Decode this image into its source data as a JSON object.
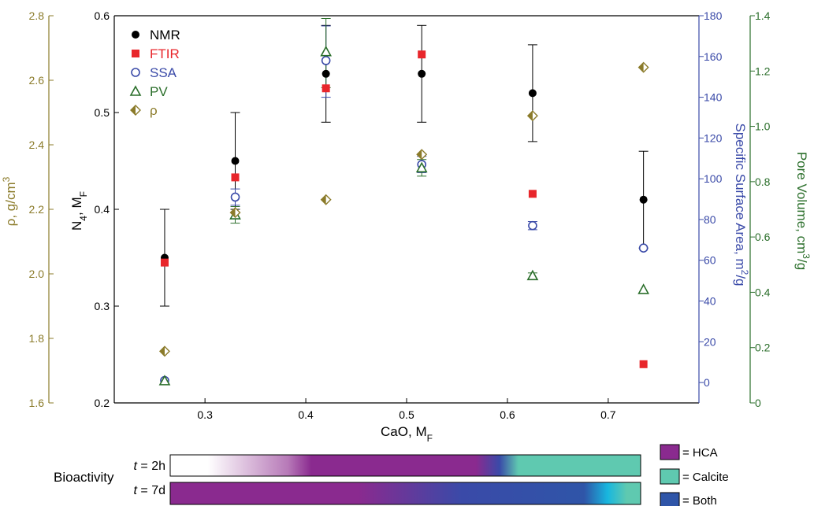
{
  "chart_data": {
    "type": "scatter",
    "x": [
      0.26,
      0.33,
      0.42,
      0.515,
      0.625,
      0.735
    ],
    "xlabel_main": "CaO",
    "xlabel_sub": "F",
    "xlabel_suffix": ", M",
    "xlim": [
      0.21,
      0.79
    ],
    "xticks": [
      "0.3",
      "0.4",
      "0.5",
      "0.6",
      "0.7"
    ],
    "axes": {
      "left_inner": {
        "label_main": "N",
        "label_sub": "4",
        "label_rest": ", M",
        "label_sub2": "F",
        "range": [
          0.2,
          0.6
        ],
        "ticks": [
          "0.2",
          "0.3",
          "0.4",
          "0.5",
          "0.6"
        ],
        "color": "#000000"
      },
      "left_outer": {
        "label": "ρ, g/cm",
        "label_sup": "3",
        "range": [
          1.6,
          2.8
        ],
        "ticks": [
          "1.6",
          "1.8",
          "2.0",
          "2.2",
          "2.4",
          "2.6",
          "2.8"
        ],
        "color": "#8b7b2a"
      },
      "right_inner": {
        "label": "Specific Surface Area, m",
        "label_sup": "2",
        "label_rest": "/g",
        "range": [
          -10,
          180
        ],
        "ticks": [
          "0",
          "20",
          "40",
          "60",
          "80",
          "100",
          "120",
          "140",
          "160",
          "180"
        ],
        "color": "#3a4aa8"
      },
      "right_outer": {
        "label": "Pore Volume, cm",
        "label_sup": "3",
        "label_rest": "/g",
        "range": [
          0,
          1.4
        ],
        "ticks": [
          "0",
          "0.2",
          "0.4",
          "0.6",
          "0.8",
          "1.0",
          "1.2",
          "1.4"
        ],
        "color": "#2a6e2a"
      }
    },
    "series": [
      {
        "name": "NMR",
        "axis": "left_inner",
        "marker": "circle-filled",
        "color": "#000000",
        "values": [
          0.35,
          0.45,
          0.54,
          0.54,
          0.52,
          0.41
        ],
        "err_low": [
          0.3,
          0.4,
          0.49,
          0.49,
          0.47,
          0.36
        ],
        "err_high": [
          0.4,
          0.5,
          0.59,
          0.59,
          0.57,
          0.46
        ]
      },
      {
        "name": "FTIR",
        "axis": "left_inner",
        "marker": "square-filled",
        "color": "#e8262b",
        "values": [
          0.345,
          0.433,
          0.525,
          0.56,
          0.416,
          0.24
        ]
      },
      {
        "name": "SSA",
        "axis": "right_inner",
        "marker": "circle-open",
        "color": "#3a4aa8",
        "values": [
          1,
          91,
          158,
          107,
          77,
          66
        ],
        "err_low": [
          1,
          87,
          140,
          103,
          75,
          66
        ],
        "err_high": [
          1,
          95,
          175,
          111,
          79,
          66
        ]
      },
      {
        "name": "PV",
        "axis": "right_outer",
        "marker": "triangle-open",
        "color": "#2a6e2a",
        "values": [
          0.08,
          0.68,
          1.27,
          0.85,
          0.46,
          0.41
        ],
        "err_low": [
          0.08,
          0.65,
          1.14,
          0.82,
          0.45,
          0.41
        ],
        "err_high": [
          0.08,
          0.71,
          1.39,
          0.88,
          0.47,
          0.41
        ]
      },
      {
        "name": "ρ",
        "axis": "left_outer",
        "marker": "diamond-half",
        "color": "#8b7b2a",
        "values": [
          1.76,
          2.19,
          2.23,
          2.37,
          2.49,
          2.64
        ]
      }
    ],
    "legend_position": "top-left",
    "bioactivity": {
      "label": "Bioactivity",
      "rows": [
        {
          "label_prefix": "t",
          "label_suffix": " = 2h"
        },
        {
          "label_prefix": "t",
          "label_suffix": " = 7d"
        }
      ],
      "legend": [
        {
          "label": "= HCA",
          "color": "#8a2a8f"
        },
        {
          "label": "= Calcite",
          "color": "#5fc9b0"
        },
        {
          "label": "= Both",
          "color": "#2f55a8"
        }
      ]
    }
  }
}
